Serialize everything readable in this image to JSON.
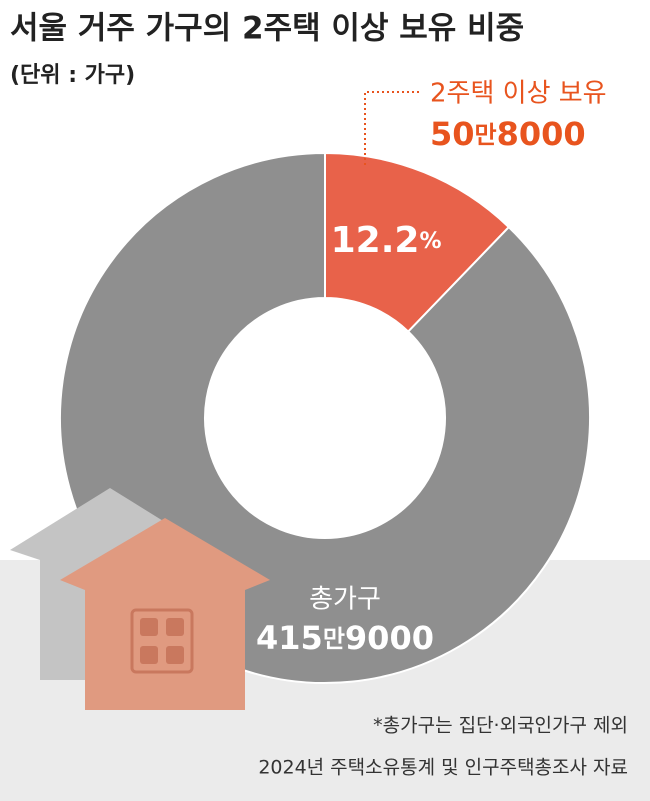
{
  "chart_data": {
    "type": "pie",
    "title": "서울 거주 가구의 2주택 이상 보유 비중",
    "subtitle": "(단위 : 가구)",
    "categories": [
      "2주택 이상 보유",
      null
    ],
    "values": [
      12.2,
      87.8
    ],
    "value_labels": [
      "12.2%",
      null
    ],
    "colors": [
      "#e8624a",
      "#8f8f8f"
    ],
    "donut": true,
    "category_counts": [
      "50만8000",
      null
    ],
    "total_label": "총가구",
    "total_value": "415만9000",
    "notes": [
      "*총가구는 집단·외국인가구 제외",
      "2024년 주택소유통계 및 인구주택총조사 자료"
    ]
  }
}
